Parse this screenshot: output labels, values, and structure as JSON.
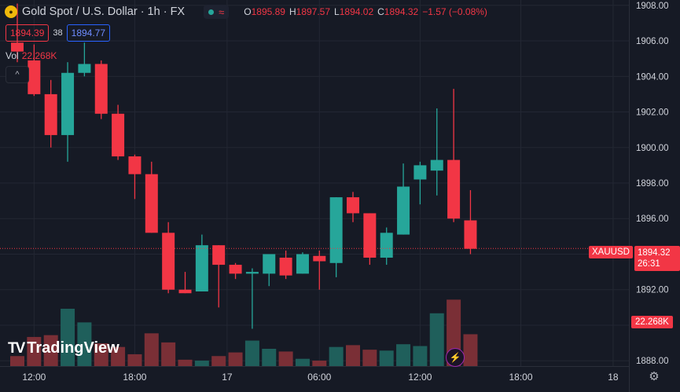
{
  "header": {
    "symbol_title": "Gold Spot / U.S. Dollar · 1h · FX",
    "status_wave": "≈",
    "ohlc": {
      "o_label": "O",
      "o": "1895.89",
      "h_label": "H",
      "h": "1897.57",
      "l_label": "L",
      "l": "1894.02",
      "c_label": "C",
      "c": "1894.32",
      "change": "−1.57 (−0.08%)"
    },
    "sell_price": "1894.39",
    "spread": "38",
    "buy_price": "1894.77",
    "volume_label": "Vol",
    "volume_value": "22.268K",
    "collapse_icon": "chevron-up-icon"
  },
  "branding": {
    "logo_mark": "TV",
    "logo_text": "TradingView"
  },
  "labels": {
    "symbol_tag": "XAUUSD",
    "last_price": "1894.32",
    "countdown": "26:31",
    "volume_tag": "22.268K"
  },
  "colors": {
    "up": "#26a69a",
    "down": "#f23645",
    "up_volume": "#1f5f5b",
    "down_volume": "#7a2f36",
    "background": "#161a25",
    "grid": "#232733",
    "axis_text": "#d1d4dc"
  },
  "chart_data": {
    "type": "candlestick",
    "title": "Gold Spot / U.S. Dollar · 1h · FX",
    "ylim": [
      1887.7,
      1908.3
    ],
    "y_ticks": [
      1888,
      1890,
      1892,
      1894,
      1896,
      1898,
      1900,
      1902,
      1904,
      1906,
      1908
    ],
    "x_ticks": [
      {
        "label": "12:00",
        "index": 1
      },
      {
        "label": "18:00",
        "index": 7
      },
      {
        "label": "17",
        "index": 12.5
      },
      {
        "label": "06:00",
        "index": 18
      },
      {
        "label": "12:00",
        "index": 24
      },
      {
        "label": "18:00",
        "index": 30
      },
      {
        "label": "18",
        "index": 35.5
      }
    ],
    "grid": true,
    "candles": [
      {
        "o": 1905.9,
        "h": 1908.1,
        "l": 1904.8,
        "c": 1905.4,
        "v": 1.1
      },
      {
        "o": 1904.9,
        "h": 1905.8,
        "l": 1902.9,
        "c": 1903.0,
        "v": 3.2
      },
      {
        "o": 1903.0,
        "h": 1903.8,
        "l": 1900.0,
        "c": 1900.7,
        "v": 3.4
      },
      {
        "o": 1900.7,
        "h": 1904.8,
        "l": 1899.2,
        "c": 1904.2,
        "v": 6.3
      },
      {
        "o": 1904.2,
        "h": 1905.9,
        "l": 1904.0,
        "c": 1904.7,
        "v": 4.8
      },
      {
        "o": 1904.7,
        "h": 1904.9,
        "l": 1901.6,
        "c": 1901.9,
        "v": 2.5
      },
      {
        "o": 1901.9,
        "h": 1902.4,
        "l": 1899.3,
        "c": 1899.5,
        "v": 2.1
      },
      {
        "o": 1899.5,
        "h": 1899.6,
        "l": 1897.1,
        "c": 1898.5,
        "v": 1.3
      },
      {
        "o": 1898.5,
        "h": 1899.2,
        "l": 1895.2,
        "c": 1895.2,
        "v": 3.6
      },
      {
        "o": 1895.2,
        "h": 1895.8,
        "l": 1891.8,
        "c": 1892.0,
        "v": 2.6
      },
      {
        "o": 1892.0,
        "h": 1893.0,
        "l": 1891.8,
        "c": 1891.8,
        "v": 0.7
      },
      {
        "o": 1891.9,
        "h": 1895.1,
        "l": 1891.9,
        "c": 1894.5,
        "v": 0.6
      },
      {
        "o": 1894.5,
        "h": 1894.5,
        "l": 1891.0,
        "c": 1893.4,
        "v": 1.1
      },
      {
        "o": 1893.4,
        "h": 1893.5,
        "l": 1892.6,
        "c": 1892.9,
        "v": 1.5
      },
      {
        "o": 1892.9,
        "h": 1893.2,
        "l": 1889.8,
        "c": 1893.0,
        "v": 2.8
      },
      {
        "o": 1892.9,
        "h": 1894.0,
        "l": 1892.2,
        "c": 1894.0,
        "v": 1.9
      },
      {
        "o": 1893.8,
        "h": 1894.2,
        "l": 1892.6,
        "c": 1892.8,
        "v": 1.6
      },
      {
        "o": 1892.9,
        "h": 1894.1,
        "l": 1892.9,
        "c": 1894.0,
        "v": 0.8
      },
      {
        "o": 1893.9,
        "h": 1894.2,
        "l": 1892.0,
        "c": 1893.6,
        "v": 0.6
      },
      {
        "o": 1893.5,
        "h": 1897.2,
        "l": 1892.7,
        "c": 1897.2,
        "v": 2.1
      },
      {
        "o": 1897.2,
        "h": 1897.5,
        "l": 1895.8,
        "c": 1896.3,
        "v": 2.3
      },
      {
        "o": 1896.3,
        "h": 1896.3,
        "l": 1893.4,
        "c": 1893.8,
        "v": 1.8
      },
      {
        "o": 1893.8,
        "h": 1895.5,
        "l": 1893.4,
        "c": 1895.2,
        "v": 1.7
      },
      {
        "o": 1895.1,
        "h": 1899.1,
        "l": 1895.1,
        "c": 1897.8,
        "v": 2.4
      },
      {
        "o": 1898.2,
        "h": 1899.2,
        "l": 1896.8,
        "c": 1899.0,
        "v": 2.2
      },
      {
        "o": 1898.7,
        "h": 1902.2,
        "l": 1897.3,
        "c": 1899.3,
        "v": 5.8
      },
      {
        "o": 1899.3,
        "h": 1903.3,
        "l": 1895.8,
        "c": 1896.0,
        "v": 7.3
      },
      {
        "o": 1895.9,
        "h": 1897.6,
        "l": 1894.0,
        "c": 1894.3,
        "v": 3.5
      }
    ],
    "volume_scale_max": 8.2,
    "current_price": 1894.32
  }
}
